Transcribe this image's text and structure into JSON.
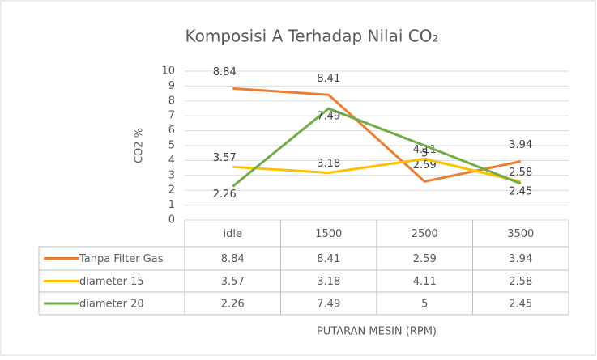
{
  "chart_data": {
    "type": "line",
    "title": "Komposisi A Terhadap Nilai CO₂",
    "y_label": "CO2 %",
    "x_label": "PUTARAN MESIN (RPM)",
    "categories": [
      "idle",
      "1500",
      "2500",
      "3500"
    ],
    "series": [
      {
        "name": "Tanpa Filter Gas",
        "color": "#ed7d31",
        "values": [
          8.84,
          8.41,
          2.59,
          3.94
        ]
      },
      {
        "name": "diameter 15",
        "color": "#ffc000",
        "values": [
          3.57,
          3.18,
          4.11,
          2.58
        ]
      },
      {
        "name": "diameter 20",
        "color": "#70ad47",
        "values": [
          2.26,
          7.49,
          5,
          2.45
        ]
      }
    ],
    "ylim": [
      0,
      10
    ],
    "yticks": [
      0,
      1,
      2,
      3,
      4,
      5,
      6,
      7,
      8,
      9,
      10
    ],
    "grid": true
  }
}
